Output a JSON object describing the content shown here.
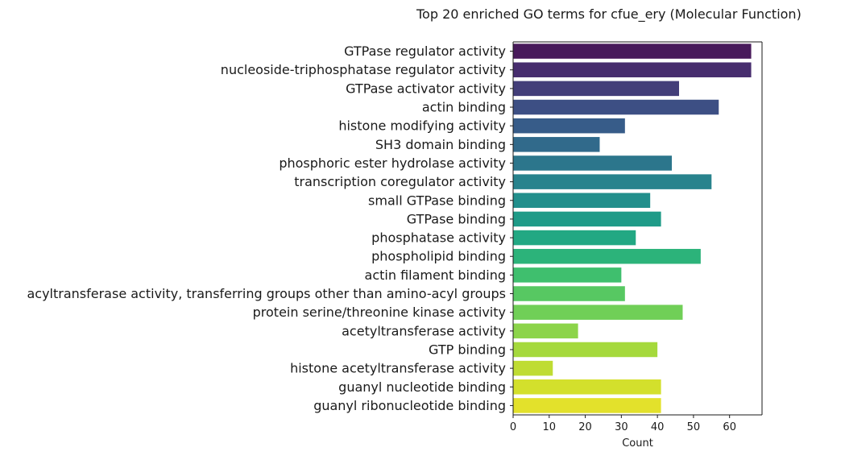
{
  "chart_data": {
    "type": "bar",
    "orientation": "horizontal",
    "title": "Top 20 enriched GO terms for cfue_ery (Molecular Function)",
    "xlabel": "Count",
    "ylabel": "",
    "xlim": [
      0,
      69
    ],
    "xticks": [
      0,
      10,
      20,
      30,
      40,
      50,
      60
    ],
    "grid": false,
    "legend": "none",
    "colormap": "viridis",
    "categories": [
      "GTPase regulator activity",
      "nucleoside-triphosphatase regulator activity",
      "GTPase activator activity",
      "actin binding",
      "histone modifying activity",
      "SH3 domain binding",
      "phosphoric ester hydrolase activity",
      "transcription coregulator activity",
      "small GTPase binding",
      "GTPase binding",
      "phosphatase activity",
      "phospholipid binding",
      "actin filament binding",
      "acyltransferase activity, transferring groups other than amino-acyl groups",
      "protein serine/threonine kinase activity",
      "acetyltransferase activity",
      "GTP binding",
      "histone acetyltransferase activity",
      "guanyl nucleotide binding",
      "guanyl ribonucleotide binding"
    ],
    "values": [
      66,
      66,
      46,
      57,
      31,
      24,
      44,
      55,
      38,
      41,
      34,
      52,
      30,
      31,
      47,
      18,
      40,
      11,
      41,
      41
    ],
    "colors": [
      "#481a5b",
      "#472d6e",
      "#433e79",
      "#3d4f84",
      "#375c89",
      "#316a8b",
      "#2c768c",
      "#28838d",
      "#228f8c",
      "#1f9b88",
      "#22a883",
      "#2cb37a",
      "#3fbf6e",
      "#57c862",
      "#70cf57",
      "#8cd44a",
      "#a5d93c",
      "#bfdc33",
      "#d3e02c",
      "#e3e12b"
    ]
  }
}
